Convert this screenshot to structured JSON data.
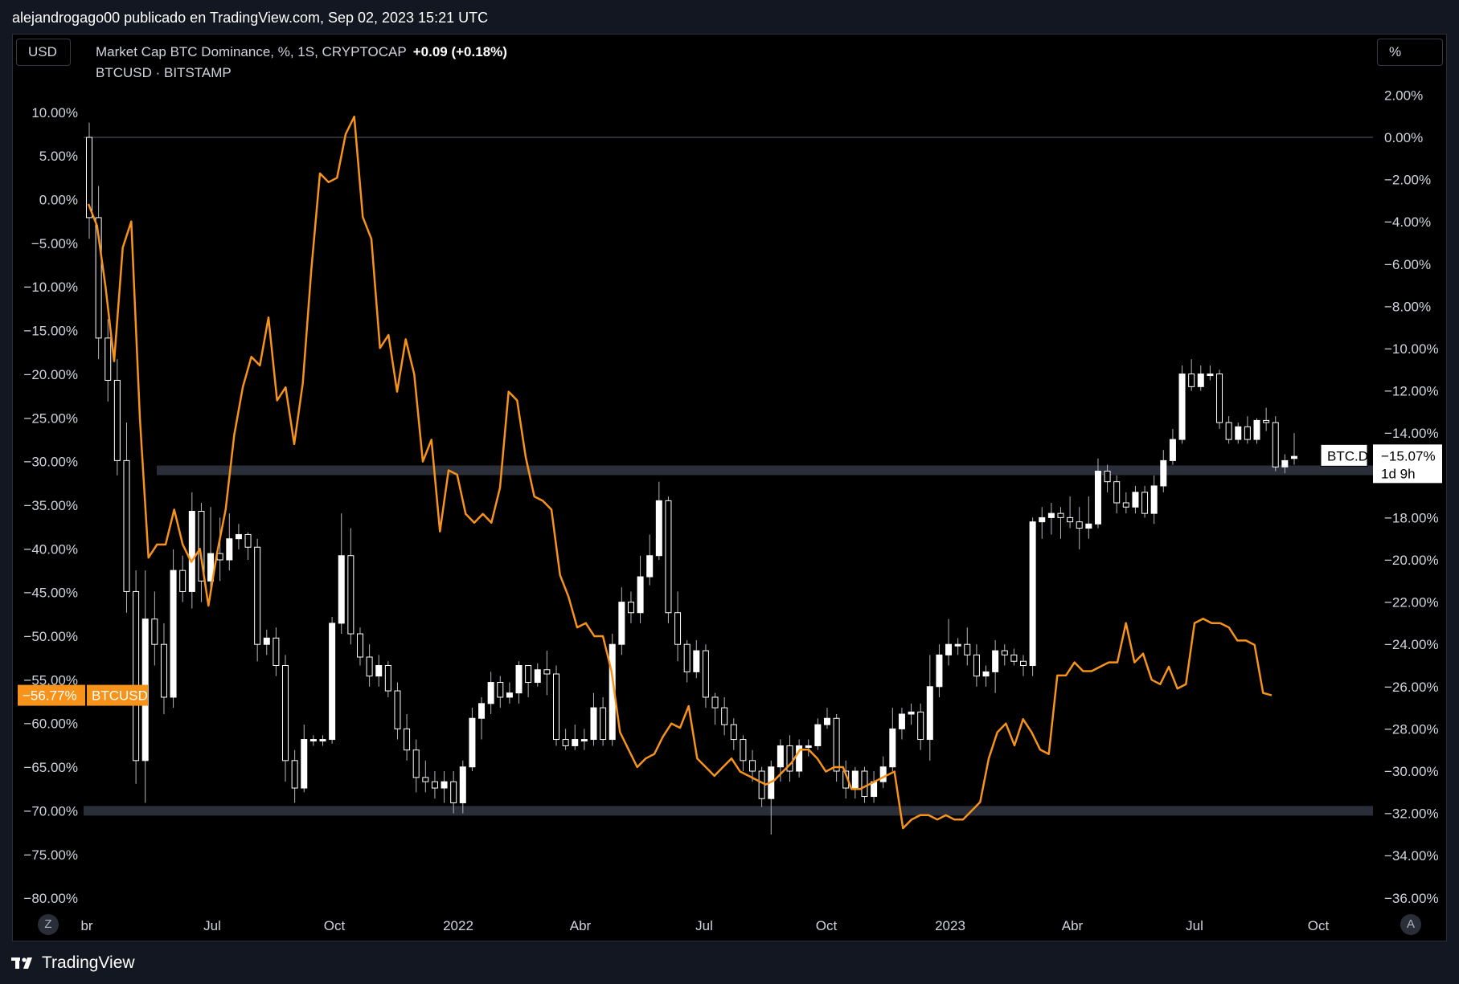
{
  "header": {
    "publisher": "alejandrogago00 publicado en TradingView.com, Sep 02, 2023 15:21 UTC"
  },
  "toolbar": {
    "currency_label": "USD",
    "scale_label": "%"
  },
  "legend": {
    "main_title": "Market Cap BTC Dominance, %, 1S, CRYPTOCAP",
    "main_change": "+0.09 (+0.18%)",
    "overlay_title": "BTCUSD · BITSTAMP"
  },
  "footer": {
    "brand": "TradingView",
    "left_corner": "Z",
    "right_corner": "A"
  },
  "colors": {
    "background": "#000000",
    "candle_up": "#ffffff",
    "candle_wick": "#b2b5be",
    "btcusd_line": "#f7931a",
    "support_band": "#2a2e39"
  },
  "chart_data": {
    "type": "line",
    "title": "Market Cap BTC Dominance, %, 1S, CRYPTOCAP",
    "x_axis": {
      "ticks": [
        "br",
        "Jul",
        "Oct",
        "2022",
        "Abr",
        "Jul",
        "Oct",
        "2023",
        "Abr",
        "Jul",
        "Oct"
      ],
      "range": [
        "2021-04",
        "2023-10"
      ]
    },
    "left_axis": {
      "series": "BTCUSD",
      "unit": "%",
      "range": [
        -80,
        15
      ],
      "ticks": [
        "10.00%",
        "5.00%",
        "0.00%",
        "−5.00%",
        "−10.00%",
        "−15.00%",
        "−20.00%",
        "−25.00%",
        "−30.00%",
        "−35.00%",
        "−40.00%",
        "−45.00%",
        "−50.00%",
        "−55.00%",
        "−60.00%",
        "−65.00%",
        "−70.00%",
        "−75.00%",
        "−80.00%"
      ]
    },
    "right_axis": {
      "series": "BTC.D",
      "unit": "%",
      "range": [
        -36,
        2
      ],
      "ticks": [
        "2.00%",
        "0.00%",
        "−2.00%",
        "−4.00%",
        "−6.00%",
        "−8.00%",
        "−10.00%",
        "−12.00%",
        "−14.00%",
        "−16.00%",
        "−18.00%",
        "−20.00%",
        "−22.00%",
        "−24.00%",
        "−26.00%",
        "−28.00%",
        "−30.00%",
        "−32.00%",
        "−34.00%",
        "−36.00%"
      ]
    },
    "reference_line": {
      "axis": "right",
      "value": 0
    },
    "bands": [
      {
        "axis": "left",
        "value": -31
      },
      {
        "axis": "left",
        "value": -70
      }
    ],
    "series": [
      {
        "name": "BTC.D",
        "kind": "candlestick",
        "axis": "right",
        "candles": [
          [
            0.0,
            -3.8,
            0.7,
            -4.8
          ],
          [
            -3.8,
            -9.5,
            -2.3,
            -10.5
          ],
          [
            -9.5,
            -11.5,
            -8.6,
            -12.5
          ],
          [
            -11.5,
            -15.3,
            -10.5,
            -16.0
          ],
          [
            -15.3,
            -21.5,
            -13.5,
            -22.5
          ],
          [
            -21.5,
            -29.5,
            -20.5,
            -30.6
          ],
          [
            -29.5,
            -22.8,
            -20.5,
            -31.5
          ],
          [
            -22.8,
            -24.0,
            -21.5,
            -25.0
          ],
          [
            -24.0,
            -26.5,
            -23.0,
            -27.3
          ],
          [
            -26.5,
            -20.5,
            -19.5,
            -27.0
          ],
          [
            -20.5,
            -21.5,
            -19.8,
            -22.0
          ],
          [
            -21.5,
            -17.7,
            -16.8,
            -22.3
          ],
          [
            -17.7,
            -21.0,
            -17.3,
            -22.0
          ],
          [
            -21.0,
            -19.7,
            -17.5,
            -21.5
          ],
          [
            -19.7,
            -20.0,
            -18.0,
            -21.0
          ],
          [
            -20.0,
            -19.0,
            -17.8,
            -20.5
          ],
          [
            -19.0,
            -18.8,
            -18.3,
            -19.5
          ],
          [
            -18.8,
            -19.4,
            -18.7,
            -20.0
          ],
          [
            -19.4,
            -24.0,
            -19.0,
            -24.8
          ],
          [
            -24.0,
            -23.7,
            -23.3,
            -24.5
          ],
          [
            -23.7,
            -25.0,
            -23.2,
            -25.5
          ],
          [
            -25.0,
            -29.5,
            -24.5,
            -30.5
          ],
          [
            -29.5,
            -30.8,
            -29.0,
            -31.5
          ],
          [
            -30.8,
            -28.5,
            -27.8,
            -31.0
          ],
          [
            -28.5,
            -28.5,
            -28.3,
            -28.8
          ],
          [
            -28.5,
            -28.5,
            -28.3,
            -28.8
          ],
          [
            -28.5,
            -23.0,
            -22.7,
            -28.7
          ],
          [
            -23.0,
            -19.8,
            -17.8,
            -23.5
          ],
          [
            -19.8,
            -23.5,
            -18.5,
            -24.0
          ],
          [
            -23.5,
            -24.6,
            -23.2,
            -25.0
          ],
          [
            -24.6,
            -25.5,
            -24.0,
            -26.0
          ],
          [
            -25.5,
            -25.0,
            -24.5,
            -26.0
          ],
          [
            -25.0,
            -26.2,
            -24.8,
            -26.5
          ],
          [
            -26.2,
            -28.0,
            -25.8,
            -28.5
          ],
          [
            -28.0,
            -29.0,
            -27.3,
            -29.5
          ],
          [
            -29.0,
            -30.3,
            -28.5,
            -31.0
          ],
          [
            -30.3,
            -30.5,
            -29.5,
            -31.0
          ],
          [
            -30.5,
            -30.8,
            -30.0,
            -31.3
          ],
          [
            -30.8,
            -30.5,
            -30.0,
            -31.5
          ],
          [
            -30.5,
            -31.5,
            -30.0,
            -32.0
          ],
          [
            -31.5,
            -29.8,
            -29.5,
            -32.0
          ],
          [
            -29.8,
            -27.5,
            -27.0,
            -30.0
          ],
          [
            -27.5,
            -26.8,
            -26.5,
            -28.5
          ],
          [
            -26.8,
            -25.8,
            -25.3,
            -27.3
          ],
          [
            -25.8,
            -26.5,
            -25.5,
            -27.0
          ],
          [
            -26.5,
            -26.3,
            -25.8,
            -26.8
          ],
          [
            -26.3,
            -25.0,
            -24.8,
            -26.8
          ],
          [
            -25.0,
            -25.8,
            -25.0,
            -26.5
          ],
          [
            -25.8,
            -25.2,
            -24.9,
            -26.0
          ],
          [
            -25.2,
            -25.4,
            -24.3,
            -26.4
          ],
          [
            -25.4,
            -28.5,
            -25.0,
            -28.8
          ],
          [
            -28.5,
            -28.8,
            -28.0,
            -29.0
          ],
          [
            -28.8,
            -28.5,
            -27.8,
            -29.0
          ],
          [
            -28.5,
            -28.5,
            -28.0,
            -29.0
          ],
          [
            -28.5,
            -27.0,
            -26.3,
            -28.8
          ],
          [
            -27.0,
            -28.5,
            -26.5,
            -28.8
          ],
          [
            -28.5,
            -24.0,
            -23.5,
            -28.8
          ],
          [
            -24.0,
            -22.0,
            -21.3,
            -24.5
          ],
          [
            -22.0,
            -22.5,
            -21.5,
            -23.0
          ],
          [
            -22.5,
            -20.8,
            -19.8,
            -23.0
          ],
          [
            -20.8,
            -19.8,
            -18.8,
            -21.2
          ],
          [
            -19.8,
            -17.2,
            -16.3,
            -20.0
          ],
          [
            -17.2,
            -22.5,
            -17.0,
            -23.0
          ],
          [
            -22.5,
            -24.0,
            -21.5,
            -24.8
          ],
          [
            -24.0,
            -25.3,
            -23.8,
            -25.8
          ],
          [
            -25.3,
            -24.3,
            -23.8,
            -25.6
          ],
          [
            -24.3,
            -26.5,
            -24.0,
            -27.0
          ],
          [
            -26.5,
            -27.0,
            -26.3,
            -27.8
          ],
          [
            -27.0,
            -27.8,
            -26.5,
            -28.3
          ],
          [
            -27.8,
            -28.5,
            -27.5,
            -29.0
          ],
          [
            -28.5,
            -29.5,
            -28.3,
            -30.0
          ],
          [
            -29.5,
            -30.0,
            -29.0,
            -30.5
          ],
          [
            -30.0,
            -31.3,
            -29.8,
            -31.7
          ],
          [
            -31.3,
            -29.8,
            -29.5,
            -33.0
          ],
          [
            -29.8,
            -28.8,
            -28.5,
            -30.5
          ],
          [
            -28.8,
            -30.0,
            -28.3,
            -30.5
          ],
          [
            -30.0,
            -28.8,
            -28.5,
            -30.3
          ],
          [
            -28.8,
            -28.8,
            -28.5,
            -29.3
          ],
          [
            -28.8,
            -27.8,
            -27.5,
            -29.0
          ],
          [
            -27.8,
            -27.5,
            -27.0,
            -28.0
          ],
          [
            -27.5,
            -30.0,
            -27.3,
            -30.5
          ],
          [
            -30.0,
            -30.8,
            -29.5,
            -31.3
          ],
          [
            -30.8,
            -30.0,
            -29.8,
            -31.3
          ],
          [
            -30.0,
            -31.2,
            -29.8,
            -31.5
          ],
          [
            -31.2,
            -30.5,
            -30.0,
            -31.5
          ],
          [
            -30.5,
            -29.8,
            -29.3,
            -30.8
          ],
          [
            -29.8,
            -28.0,
            -27.0,
            -30.0
          ],
          [
            -28.0,
            -27.3,
            -27.0,
            -28.5
          ],
          [
            -27.3,
            -27.2,
            -26.8,
            -27.8
          ],
          [
            -27.2,
            -28.5,
            -26.8,
            -29.0
          ],
          [
            -28.5,
            -26.0,
            -24.5,
            -29.5
          ],
          [
            -26.0,
            -24.5,
            -24.0,
            -26.5
          ],
          [
            -24.5,
            -24.0,
            -22.8,
            -25.0
          ],
          [
            -24.0,
            -24.0,
            -23.7,
            -24.5
          ],
          [
            -24.0,
            -24.5,
            -23.2,
            -25.0
          ],
          [
            -24.5,
            -25.5,
            -24.0,
            -26.0
          ],
          [
            -25.5,
            -25.3,
            -25.0,
            -26.0
          ],
          [
            -25.3,
            -24.3,
            -23.8,
            -26.3
          ],
          [
            -24.3,
            -24.5,
            -24.0,
            -25.0
          ],
          [
            -24.5,
            -24.8,
            -24.2,
            -25.0
          ],
          [
            -24.8,
            -25.0,
            -24.5,
            -25.5
          ],
          [
            -25.0,
            -18.2,
            -18.0,
            -25.5
          ],
          [
            -18.2,
            -18.0,
            -17.5,
            -19.0
          ],
          [
            -18.0,
            -17.8,
            -17.3,
            -18.8
          ],
          [
            -17.8,
            -18.0,
            -17.5,
            -19.0
          ],
          [
            -18.0,
            -18.2,
            -17.0,
            -18.5
          ],
          [
            -18.2,
            -18.5,
            -17.5,
            -19.5
          ],
          [
            -18.5,
            -18.3,
            -17.0,
            -19.0
          ],
          [
            -18.3,
            -15.8,
            -15.2,
            -18.5
          ],
          [
            -15.8,
            -16.3,
            -15.5,
            -16.8
          ],
          [
            -16.3,
            -17.3,
            -16.0,
            -17.8
          ],
          [
            -17.3,
            -17.5,
            -16.8,
            -17.8
          ],
          [
            -17.5,
            -16.8,
            -16.5,
            -17.8
          ],
          [
            -16.8,
            -17.8,
            -16.5,
            -18.0
          ],
          [
            -17.8,
            -16.5,
            -16.0,
            -18.3
          ],
          [
            -16.5,
            -15.3,
            -14.8,
            -16.8
          ],
          [
            -15.3,
            -14.3,
            -13.8,
            -15.5
          ],
          [
            -14.3,
            -11.2,
            -10.8,
            -14.5
          ],
          [
            -11.2,
            -11.8,
            -10.5,
            -12.0
          ],
          [
            -11.8,
            -11.2,
            -10.8,
            -12.0
          ],
          [
            -11.2,
            -11.2,
            -10.8,
            -11.5
          ],
          [
            -11.2,
            -13.5,
            -11.0,
            -13.8
          ],
          [
            -13.5,
            -14.3,
            -13.2,
            -14.5
          ],
          [
            -14.3,
            -13.7,
            -13.5,
            -14.5
          ],
          [
            -13.7,
            -14.3,
            -13.2,
            -14.5
          ],
          [
            -14.3,
            -13.4,
            -13.3,
            -14.5
          ],
          [
            -13.4,
            -13.5,
            -12.8,
            -13.9
          ],
          [
            -13.5,
            -15.6,
            -13.2,
            -15.8
          ],
          [
            -15.6,
            -15.3,
            -15.0,
            -15.9
          ],
          [
            -15.2,
            -15.1,
            -14.0,
            -15.5
          ]
        ],
        "last_value": "−15.07%",
        "last_label": "BTC.D",
        "countdown": "1d 9h"
      },
      {
        "name": "BTCUSD",
        "kind": "line",
        "axis": "left",
        "values": [
          -0.5,
          -3.0,
          -10.0,
          -18.5,
          -5.5,
          -2.5,
          -25.0,
          -41.0,
          -39.5,
          -39.5,
          -35.5,
          -39.5,
          -41.5,
          -40.0,
          -46.5,
          -40.5,
          -35.5,
          -27.0,
          -21.5,
          -18.0,
          -19.0,
          -13.5,
          -23.0,
          -21.5,
          -28.0,
          -21.0,
          -8.0,
          3.0,
          2.0,
          2.5,
          7.5,
          9.5,
          -2.0,
          -4.5,
          -17.0,
          -15.5,
          -22.0,
          -16.0,
          -20.0,
          -30.0,
          -27.5,
          -38.0,
          -31.0,
          -31.5,
          -36.0,
          -37.0,
          -36.0,
          -37.0,
          -33.0,
          -22.0,
          -23.0,
          -29.5,
          -34.0,
          -34.5,
          -35.5,
          -43.0,
          -45.5,
          -49.0,
          -48.5,
          -50.0,
          -50.0,
          -54.0,
          -61.0,
          -63.0,
          -65.0,
          -64.0,
          -63.5,
          -61.5,
          -60.0,
          -60.5,
          -58.0,
          -64.0,
          -65.0,
          -66.0,
          -65.0,
          -64.0,
          -65.5,
          -66.0,
          -66.5,
          -67.0,
          -66.5,
          -65.5,
          -64.5,
          -63.0,
          -63.0,
          -64.0,
          -65.5,
          -65.0,
          -65.0,
          -67.5,
          -67.5,
          -67.0,
          -66.5,
          -66.0,
          -65.5,
          -72.0,
          -71.0,
          -70.5,
          -70.5,
          -71.0,
          -70.5,
          -71.0,
          -71.0,
          -70.0,
          -69.0,
          -64.0,
          -61.0,
          -60.0,
          -62.5,
          -59.5,
          -61.0,
          -63.0,
          -63.5,
          -54.5,
          -54.5,
          -53.0,
          -54.0,
          -54.0,
          -53.5,
          -53.0,
          -53.0,
          -48.5,
          -53.0,
          -52.0,
          -55.0,
          -55.5,
          -53.5,
          -56.0,
          -55.5,
          -48.5,
          -48.0,
          -48.5,
          -48.5,
          -49.0,
          -50.5,
          -50.5,
          -51.0,
          -56.5,
          -56.77
        ],
        "last_value": "−56.77%",
        "last_label": "BTCUSD"
      }
    ]
  }
}
